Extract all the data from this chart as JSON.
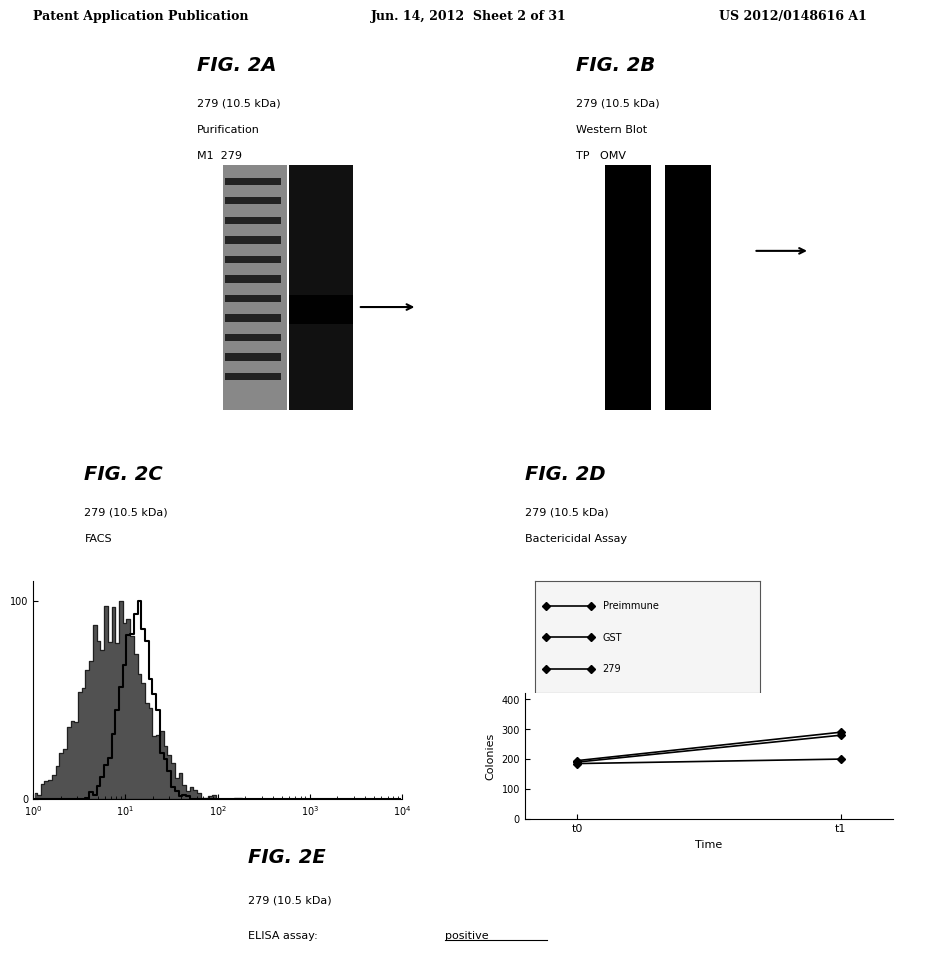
{
  "header_left": "Patent Application Publication",
  "header_center": "Jun. 14, 2012  Sheet 2 of 31",
  "header_right": "US 2012/0148616 A1",
  "fig2a_title": "FIG. 2A",
  "fig2a_sub1": "279 (10.5 kDa)",
  "fig2a_sub2": "Purification",
  "fig2a_sub3": "M1  279",
  "fig2b_title": "FIG. 2B",
  "fig2b_sub1": "279 (10.5 kDa)",
  "fig2b_sub2": "Western Blot",
  "fig2b_sub3": "TP   OMV",
  "fig2c_title": "FIG. 2C",
  "fig2c_sub1": "279 (10.5 kDa)",
  "fig2c_sub2": "FACS",
  "fig2d_title": "FIG. 2D",
  "fig2d_sub1": "279 (10.5 kDa)",
  "fig2d_sub2": "Bactericidal Assay",
  "fig2e_title": "FIG. 2E",
  "fig2e_sub1": "279 (10.5 kDa)",
  "fig2e_sub2": "ELISA assay: positive",
  "bg_color": "#ffffff",
  "text_color": "#000000",
  "gel_color": "#1a1a1a",
  "band_color": "#000000",
  "facs_fill_color": "#333333",
  "facs_line_color": "#ffffff",
  "line_preimmune": {
    "color": "#000000",
    "marker": "D",
    "label": "Preimmune",
    "x": [
      0,
      1
    ],
    "y": [
      190,
      280
    ]
  },
  "line_gst": {
    "color": "#000000",
    "marker": "D",
    "label": "GST",
    "x": [
      0,
      1
    ],
    "y": [
      195,
      290
    ]
  },
  "line_279": {
    "color": "#000000",
    "marker": "D",
    "label": "279",
    "x": [
      0,
      1
    ],
    "y": [
      185,
      200
    ]
  },
  "bactericidal_yticks": [
    0,
    100,
    200,
    300,
    400
  ],
  "bactericidal_ylabel": "Colonies",
  "bactericidal_xticks": [
    "t0",
    "t1"
  ],
  "bactericidal_xlabel": "Time"
}
